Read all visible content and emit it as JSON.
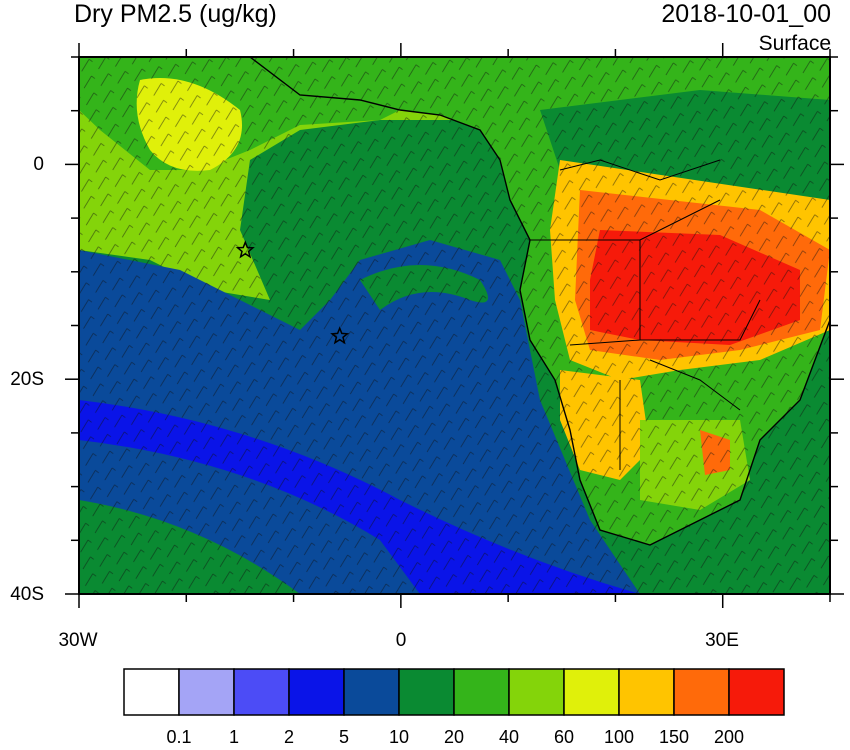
{
  "header": {
    "title": "Dry PM2.5 (ug/kg)",
    "datetime": "2018-10-01_00",
    "level": "Surface"
  },
  "axes": {
    "x_ticks": [
      {
        "value": -30,
        "label": "30W"
      },
      {
        "value": 0,
        "label": "0"
      },
      {
        "value": 30,
        "label": "30E"
      }
    ],
    "y_ticks": [
      {
        "value": 0,
        "label": "0"
      },
      {
        "value": -20,
        "label": "20S"
      },
      {
        "value": -40,
        "label": "40S"
      }
    ],
    "lon_range": [
      -30,
      40
    ],
    "lat_range": [
      -40,
      10
    ]
  },
  "colorbar": {
    "colors": [
      "#ffffff",
      "#a4a4f6",
      "#4c4cf6",
      "#0a14e8",
      "#0a4a9a",
      "#0a8a32",
      "#34b41a",
      "#84d40a",
      "#e0f00a",
      "#ffc400",
      "#ff6a0a",
      "#f61a0a"
    ],
    "labels": [
      "0.1",
      "1",
      "2",
      "5",
      "10",
      "20",
      "40",
      "60",
      "100",
      "150",
      "200"
    ]
  },
  "markers": [
    {
      "name": "station-star-1",
      "lon": -14.5,
      "lat": -8
    },
    {
      "name": "station-star-2",
      "lon": -5.7,
      "lat": -16
    }
  ],
  "colors": {
    "ocean_low": "#0a4a9a",
    "land_high": "#f61a0a",
    "frame": "#000000"
  }
}
